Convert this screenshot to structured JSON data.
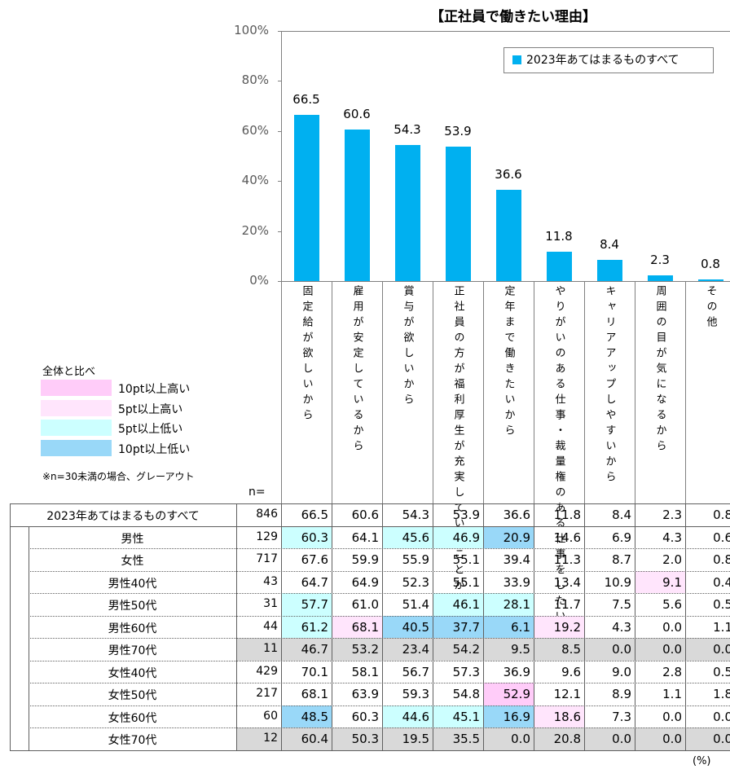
{
  "chart_data": {
    "type": "bar",
    "title": "【正社員で働きたい理由】",
    "categories": [
      "固定給が欲しいから",
      "雇用が安定しているから",
      "賞与が欲しいから",
      "正社員の方が福利厚生が充実していることが多いから",
      "定年まで働きたいから",
      "やりがいのある仕事・裁量権のある仕事をしたいから",
      "キャリアアップしやすいから",
      "周囲の目が気になるから",
      "その他"
    ],
    "series": [
      {
        "name": "2023年あてはまるものすべて",
        "color": "#00b0f0",
        "values": [
          66.5,
          60.6,
          54.3,
          53.9,
          36.6,
          11.8,
          8.4,
          2.3,
          0.8
        ]
      }
    ],
    "ylim": [
      0,
      100
    ],
    "yticks": [
      {
        "value": 0,
        "label": "0%"
      },
      {
        "value": 20,
        "label": "20%"
      },
      {
        "value": 40,
        "label": "40%"
      },
      {
        "value": 60,
        "label": "60%"
      },
      {
        "value": 80,
        "label": "80%"
      },
      {
        "value": 100,
        "label": "100%"
      }
    ]
  },
  "shading_legend": {
    "title": "全体と比べ",
    "items": [
      {
        "label": "10pt以上高い",
        "color": "#ffccf9"
      },
      {
        "label": "5pt以上高い",
        "color": "#ffe5fc"
      },
      {
        "label": "5pt以上低い",
        "color": "#ccffff"
      },
      {
        "label": "10pt以上低い",
        "color": "#99d8f8"
      }
    ],
    "note": "※n=30未満の場合、グレーアウト",
    "gray_color": "#d9d9d9"
  },
  "table": {
    "n_header": "n=",
    "unit": "(%)",
    "total": {
      "label": "2023年あてはまるものすべて",
      "n": "846",
      "values": [
        "66.5",
        "60.6",
        "54.3",
        "53.9",
        "36.6",
        "11.8",
        "8.4",
        "2.3",
        "0.8"
      ]
    },
    "rows": [
      {
        "label": "男性",
        "n": "129",
        "values": [
          "60.3",
          "64.1",
          "45.6",
          "46.9",
          "20.9",
          "14.6",
          "6.9",
          "4.3",
          "0.6"
        ],
        "shade": [
          2,
          null,
          2,
          2,
          3,
          null,
          null,
          null,
          null
        ]
      },
      {
        "label": "女性",
        "n": "717",
        "values": [
          "67.6",
          "59.9",
          "55.9",
          "55.1",
          "39.4",
          "11.3",
          "8.7",
          "2.0",
          "0.8"
        ],
        "shade": [
          null,
          null,
          null,
          null,
          null,
          null,
          null,
          null,
          null
        ]
      },
      {
        "label": "男性40代",
        "n": "43",
        "values": [
          "64.7",
          "64.9",
          "52.3",
          "55.1",
          "33.9",
          "13.4",
          "10.9",
          "9.1",
          "0.4"
        ],
        "shade": [
          null,
          null,
          null,
          null,
          null,
          null,
          null,
          1,
          null
        ]
      },
      {
        "label": "男性50代",
        "n": "31",
        "values": [
          "57.7",
          "61.0",
          "51.4",
          "46.1",
          "28.1",
          "11.7",
          "7.5",
          "5.6",
          "0.5"
        ],
        "shade": [
          2,
          null,
          null,
          2,
          2,
          null,
          null,
          null,
          null
        ]
      },
      {
        "label": "男性60代",
        "n": "44",
        "values": [
          "61.2",
          "68.1",
          "40.5",
          "37.7",
          "6.1",
          "19.2",
          "4.3",
          "0.0",
          "1.1"
        ],
        "shade": [
          2,
          1,
          3,
          3,
          3,
          1,
          null,
          null,
          null
        ]
      },
      {
        "label": "男性70代",
        "n": "11",
        "values": [
          "46.7",
          "53.2",
          "23.4",
          "54.2",
          "9.5",
          "8.5",
          "0.0",
          "0.0",
          "0.0"
        ],
        "gray": true
      },
      {
        "label": "女性40代",
        "n": "429",
        "values": [
          "70.1",
          "58.1",
          "56.7",
          "57.3",
          "36.9",
          "9.6",
          "9.0",
          "2.8",
          "0.5"
        ],
        "shade": [
          null,
          null,
          null,
          null,
          null,
          null,
          null,
          null,
          null
        ]
      },
      {
        "label": "女性50代",
        "n": "217",
        "values": [
          "68.1",
          "63.9",
          "59.3",
          "54.8",
          "52.9",
          "12.1",
          "8.9",
          "1.1",
          "1.8"
        ],
        "shade": [
          null,
          null,
          null,
          null,
          0,
          null,
          null,
          null,
          null
        ]
      },
      {
        "label": "女性60代",
        "n": "60",
        "values": [
          "48.5",
          "60.3",
          "44.6",
          "45.1",
          "16.9",
          "18.6",
          "7.3",
          "0.0",
          "0.0"
        ],
        "shade": [
          3,
          null,
          2,
          2,
          3,
          1,
          null,
          null,
          null
        ]
      },
      {
        "label": "女性70代",
        "n": "12",
        "values": [
          "60.4",
          "50.3",
          "19.5",
          "35.5",
          "0.0",
          "20.8",
          "0.0",
          "0.0",
          "0.0"
        ],
        "gray": true
      }
    ]
  }
}
